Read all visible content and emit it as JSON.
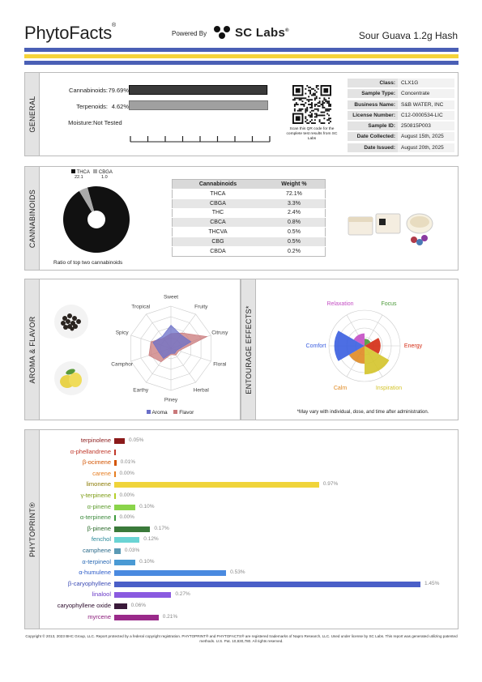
{
  "header": {
    "brand": "PhytoFacts",
    "brand_mark": "®",
    "powered_by": "Powered By",
    "sc_labs": "SC Labs",
    "sc_mark": "®",
    "product_name": "Sour Guava 1.2g Hash"
  },
  "colors": {
    "stripe_blue": "#4a5fb5",
    "stripe_yellow": "#f5d33a"
  },
  "general": {
    "label": "GENERAL",
    "rows": [
      {
        "label": "Cannabinoids:",
        "value": "79.69%",
        "fraction": 0.7969
      },
      {
        "label": "Terpenoids:",
        "value": "4.62%",
        "fraction": 0.0462
      },
      {
        "label": "Moisture:",
        "value": "Not Tested"
      }
    ],
    "qr_caption": "Scan this QR code for the complete test results from SC Labs",
    "info": [
      {
        "key": "Class:",
        "val": "CLX1G"
      },
      {
        "key": "Sample Type:",
        "val": "Concentrate"
      },
      {
        "key": "Business Name:",
        "val": "S&B WATER, INC"
      },
      {
        "key": "License Number:",
        "val": "C12-0000534-LIC"
      },
      {
        "key": "Sample ID:",
        "val": "250815P003"
      },
      {
        "key": "Date Collected:",
        "val": "August 15th, 2025"
      },
      {
        "key": "Date Issued:",
        "val": "August 20th, 2025"
      }
    ]
  },
  "cannabinoids": {
    "label": "CANNABINOIDS",
    "pie_caption": "Ratio of top two cannabinoids",
    "pie_legend": [
      {
        "name": "THCA",
        "value": "22.1",
        "color": "#111111",
        "share": 22.1
      },
      {
        "name": "CBGA",
        "value": "1.0",
        "color": "#aaaaaa",
        "share": 1.0
      }
    ],
    "table_headers": [
      "Cannabinoids",
      "Weight %"
    ],
    "table_rows": [
      {
        "name": "THCA",
        "value": "72.1%"
      },
      {
        "name": "CBGA",
        "value": "3.3%"
      },
      {
        "name": "THC",
        "value": "2.4%"
      },
      {
        "name": "CBCA",
        "value": "0.8%"
      },
      {
        "name": "THCVA",
        "value": "0.5%"
      },
      {
        "name": "CBG",
        "value": "0.5%"
      },
      {
        "name": "CBDA",
        "value": "0.2%"
      }
    ]
  },
  "aroma": {
    "label": "AROMA & FLAVOR",
    "axes": [
      "Sweet",
      "Fruity",
      "Citrusy",
      "Floral",
      "Herbal",
      "Piney",
      "Earthy",
      "Camphor",
      "Spicy",
      "Tropical"
    ],
    "aroma_values": [
      0.55,
      0.4,
      0.5,
      0.15,
      0.15,
      0.12,
      0.3,
      0.3,
      0.45,
      0.35
    ],
    "flavor_values": [
      0.35,
      0.45,
      0.9,
      0.2,
      0.2,
      0.15,
      0.4,
      0.55,
      0.5,
      0.3
    ],
    "legend": [
      "Aroma",
      "Flavor"
    ],
    "colors": {
      "aroma": "#6a6fc8",
      "flavor": "#c9787a"
    }
  },
  "entourage": {
    "label": "ENTOURAGE EFFECTS*",
    "effects": [
      {
        "name": "Relaxation",
        "color": "#c44fc4",
        "value": 0.35
      },
      {
        "name": "Focus",
        "color": "#4c9a3a",
        "value": 0.2
      },
      {
        "name": "Energy",
        "color": "#d42a12",
        "value": 0.45
      },
      {
        "name": "Inspiration",
        "color": "#d4c42a",
        "value": 0.8
      },
      {
        "name": "Calm",
        "color": "#e08a22",
        "value": 0.5
      },
      {
        "name": "Comfort",
        "color": "#3a5ee0",
        "value": 0.85
      }
    ],
    "note": "*May vary with individual, dose, and time after administration."
  },
  "phytoprint": {
    "label": "PHYTOPRINT®",
    "max_value": 1.45,
    "terpenes": [
      {
        "name": "terpinolene",
        "value": 0.05,
        "label": "0.05%",
        "color": "#8b1a1a"
      },
      {
        "name": "α-phellandrene",
        "value": 0.0,
        "label": "",
        "color": "#c0392b"
      },
      {
        "name": "β-ocimene",
        "value": 0.01,
        "label": "0.01%",
        "color": "#d35400"
      },
      {
        "name": "carene",
        "value": 0.0,
        "label": "0.00%",
        "color": "#e67e22"
      },
      {
        "name": "limonene",
        "value": 0.97,
        "label": "0.97%",
        "color": "#f0d43a"
      },
      {
        "name": "γ-terpinene",
        "value": 0.0,
        "label": "0.00%",
        "color": "#b5cf2a"
      },
      {
        "name": "α-pinene",
        "value": 0.1,
        "label": "0.10%",
        "color": "#8ad44a"
      },
      {
        "name": "α-terpinene",
        "value": 0.0,
        "label": "0.00%",
        "color": "#3c9a3c"
      },
      {
        "name": "β-pinene",
        "value": 0.17,
        "label": "0.17%",
        "color": "#3a7a3a"
      },
      {
        "name": "fenchol",
        "value": 0.12,
        "label": "0.12%",
        "color": "#6ad4d4"
      },
      {
        "name": "camphene",
        "value": 0.03,
        "label": "0.03%",
        "color": "#5a9ab5"
      },
      {
        "name": "α-terpineol",
        "value": 0.1,
        "label": "0.10%",
        "color": "#4a9ad4"
      },
      {
        "name": "α-humulene",
        "value": 0.53,
        "label": "0.53%",
        "color": "#4a8ae0"
      },
      {
        "name": "β-caryophyllene",
        "value": 1.45,
        "label": "1.45%",
        "color": "#4a5fc8"
      },
      {
        "name": "linalool",
        "value": 0.27,
        "label": "0.27%",
        "color": "#8a5ae0"
      },
      {
        "name": "caryophyllene oxide",
        "value": 0.06,
        "label": "0.06%",
        "color": "#3a1a3a"
      },
      {
        "name": "myrcene",
        "value": 0.21,
        "label": "0.21%",
        "color": "#9a2a8a"
      }
    ],
    "name_colors": [
      "#8b1a1a",
      "#c0392b",
      "#d35400",
      "#e67e22",
      "#8a7a00",
      "#7a9a10",
      "#5a9a2a",
      "#3c8a3c",
      "#2a6a2a",
      "#2a8a9a",
      "#2a6a8a",
      "#2a6ab5",
      "#2a5ac8",
      "#3a4ab5",
      "#6a3ac8",
      "#2a0a2a",
      "#8a1a7a"
    ]
  },
  "footer": "Copyright © 2013, 2023 BHC Group, LLC. Report protected by a federal copyright registration. PHYTOPRINT® and PHYTOFACTS® are registered trademarks of Napro Research, LLC. Used under license by SC Labs. This report was generated utilizing patented methods. U.S. Pat. 10,830,780. All rights reserved."
}
